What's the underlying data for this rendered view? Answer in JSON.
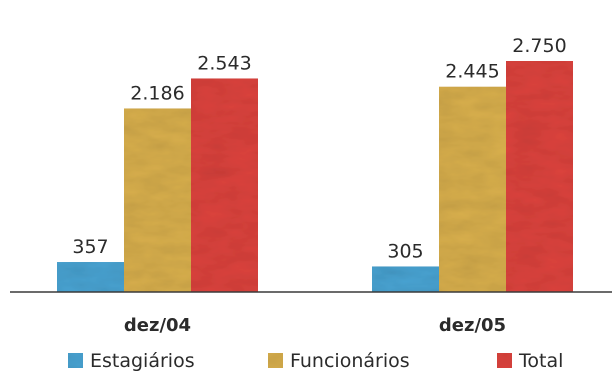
{
  "chart_data": {
    "type": "bar",
    "categories": [
      "dez/04",
      "dez/05"
    ],
    "series": [
      {
        "name": "Estagiários",
        "values": [
          357,
          305
        ],
        "labels": [
          "357",
          "305"
        ],
        "color": "#4aa6d6"
      },
      {
        "name": "Funcionários",
        "values": [
          2186,
          2445
        ],
        "labels": [
          "2.186",
          "2.445"
        ],
        "color": "#dcb24e"
      },
      {
        "name": "Total",
        "values": [
          2543,
          2750
        ],
        "labels": [
          "2.543",
          "2.750"
        ],
        "color": "#e0443e"
      }
    ],
    "title": "",
    "xlabel": "",
    "ylabel": "",
    "ylim": [
      0,
      3000
    ],
    "grid": false,
    "legend": "bottom"
  }
}
